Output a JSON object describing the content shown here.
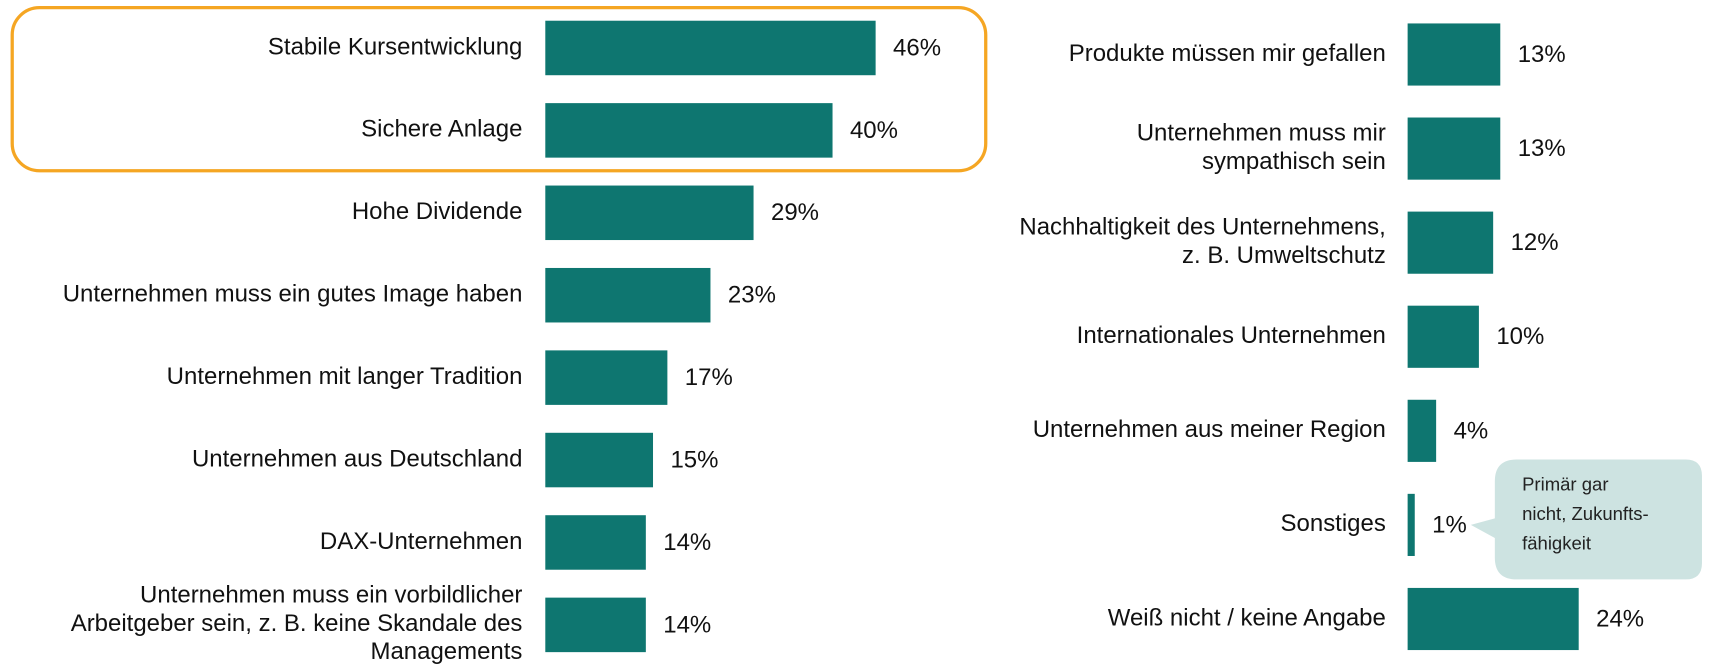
{
  "chart_data": [
    {
      "type": "bar",
      "orientation": "horizontal",
      "color": "#0e7670",
      "categories": [
        "Stabile Kursentwicklung",
        "Sichere Anlage",
        "Hohe Dividende",
        "Unternehmen muss ein gutes Image haben",
        "Unternehmen mit langer Tradition",
        "Unternehmen aus Deutschland",
        "DAX-Unternehmen",
        "Unternehmen muss ein vorbildlicher\nArbeitgeber sein, z. B. keine Skandale des\nManagements"
      ],
      "values": [
        46,
        40,
        29,
        23,
        17,
        15,
        14,
        14
      ],
      "value_labels": [
        "46%",
        "40%",
        "29%",
        "23%",
        "17%",
        "15%",
        "14%",
        "14%"
      ],
      "xlim": [
        0,
        50
      ],
      "highlight": [
        0,
        1
      ],
      "highlight_color": "#f5a623"
    },
    {
      "type": "bar",
      "orientation": "horizontal",
      "color": "#0e7670",
      "categories": [
        "Produkte müssen mir gefallen",
        "Unternehmen muss mir\nsympathisch sein",
        "Nachhaltigkeit des Unternehmens,\nz. B. Umweltschutz",
        "Internationales Unternehmen",
        "Unternehmen aus meiner Region",
        "Sonstiges",
        "Weiß nicht / keine Angabe"
      ],
      "values": [
        13,
        13,
        12,
        10,
        4,
        1,
        24
      ],
      "value_labels": [
        "13%",
        "13%",
        "12%",
        "10%",
        "4%",
        "1%",
        "24%"
      ],
      "xlim": [
        0,
        25
      ],
      "annotation": {
        "category": 5,
        "lines": [
          "Primär gar",
          "nicht, Zukunfts-",
          "fähigkeit"
        ],
        "color": "#cde3e1"
      }
    }
  ]
}
